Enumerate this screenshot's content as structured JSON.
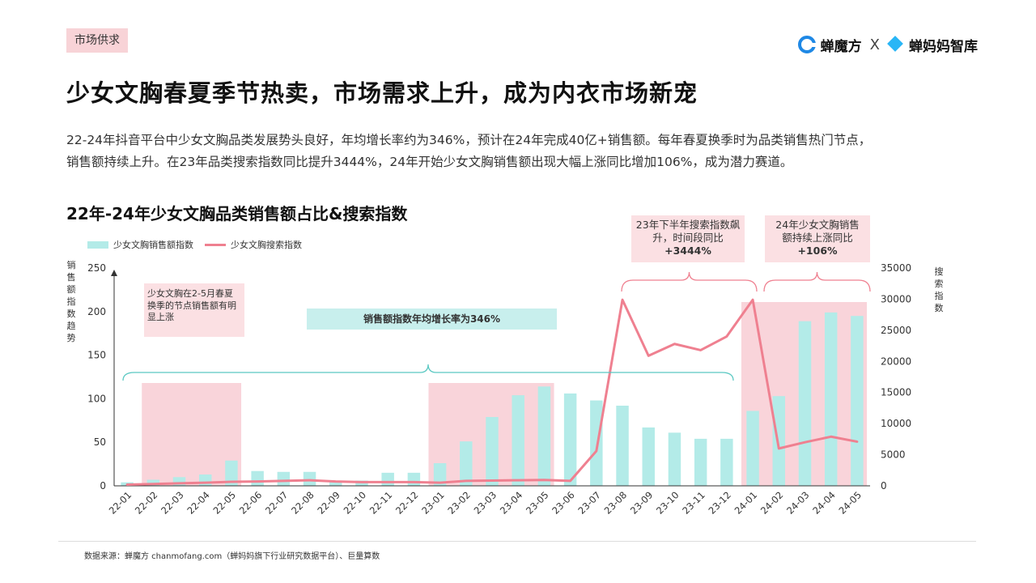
{
  "header": {
    "tag": "市场供求",
    "brand_left": "蝉魔方",
    "brand_sep": "X",
    "brand_right": "蝉妈妈智库"
  },
  "title": "少女文胸春夏季节热卖，市场需求上升，成为内衣市场新宠",
  "description": [
    "22-24年抖音平台中少女文胸品类发展势头良好，年均增长率约为346%，预计在24年完成40亿+销售额。每年春夏换季时为品类销售热门节点，",
    "销售额持续上升。在23年品类搜索指数同比提升3444%，24年开始少女文胸销售额出现大幅上涨同比增加106%，成为潜力赛道。"
  ],
  "source": "数据来源：蝉魔方 chanmofang.com（蝉妈妈旗下行业研究数据平台）、巨量算数",
  "chart_data": {
    "type": "bar",
    "title": "22年-24年少女文胸品类销售额占比&搜索指数",
    "categories": [
      "22-01",
      "22-02",
      "22-03",
      "22-04",
      "22-05",
      "22-06",
      "22-07",
      "22-08",
      "22-09",
      "22-10",
      "22-11",
      "22-12",
      "23-01",
      "23-02",
      "23-03",
      "23-04",
      "23-05",
      "23-06",
      "23-07",
      "23-08",
      "23-09",
      "23-10",
      "23-11",
      "23-12",
      "24-01",
      "24-02",
      "24-03",
      "24-04",
      "24-05"
    ],
    "series": [
      {
        "name": "少女文胸销售额指数",
        "type": "bar",
        "axis": "left",
        "color": "#b3ebe8",
        "values": [
          4,
          7,
          10,
          13,
          29,
          17,
          16,
          16,
          6,
          6,
          15,
          15,
          26,
          51,
          79,
          104,
          114,
          106,
          98,
          92,
          67,
          61,
          54,
          54,
          86,
          103,
          189,
          199,
          195
        ]
      },
      {
        "name": "少女文胸搜索指数",
        "type": "line",
        "axis": "right",
        "color": "#ef8090",
        "values": [
          200,
          300,
          400,
          500,
          650,
          700,
          800,
          900,
          700,
          600,
          600,
          600,
          500,
          800,
          850,
          900,
          950,
          800,
          5600,
          29900,
          20900,
          22800,
          21800,
          24000,
          29900,
          6000,
          7000,
          7900,
          7100
        ]
      }
    ],
    "ylabel_left": "销售额指数趋势",
    "ylabel_right": "搜索指数",
    "ylim_left": [
      0,
      250
    ],
    "yticks_left": [
      0,
      50,
      100,
      150,
      200,
      250
    ],
    "ylim_right": [
      0,
      35000
    ],
    "yticks_right": [
      0,
      5000,
      10000,
      15000,
      20000,
      25000,
      30000,
      35000
    ],
    "grid": false,
    "legend": "top-left",
    "annotations": {
      "season_note": "少女文胸在2-5月春夏换季的节点销售额有明显上涨",
      "growth_note": "销售额指数年均增长率为346%",
      "search_title": "23年下半年搜索指数飙升，时间段同比",
      "search_value": "+3444%",
      "sales_title": "24年少女文胸销售额持续上涨同比",
      "sales_value": "+106%"
    },
    "highlight_ranges": [
      [
        "22-02",
        "22-05"
      ],
      [
        "23-01",
        "23-05"
      ],
      [
        "24-01",
        "24-05"
      ]
    ]
  }
}
